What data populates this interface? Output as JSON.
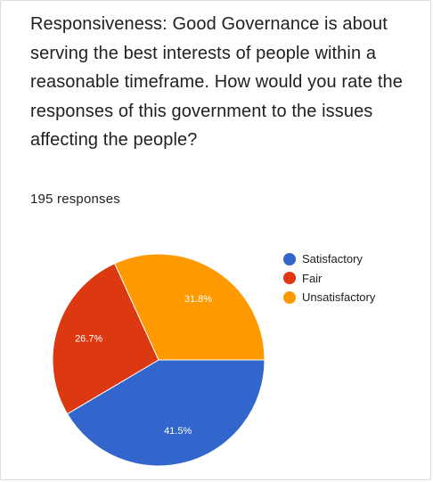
{
  "question": {
    "title": "Responsiveness: Good Governance is about serving the best interests of people within a reasonable timeframe. How would you rate the responses of this government to the issues affecting the people?",
    "response_count": "195 responses"
  },
  "chart_data": {
    "type": "pie",
    "categories": [
      "Satisfactory",
      "Fair",
      "Unsatisfactory"
    ],
    "values": [
      41.5,
      26.7,
      31.8
    ],
    "labels": [
      "41.5%",
      "26.7%",
      "31.8%"
    ],
    "colors": [
      "#3366cc",
      "#dc3912",
      "#ff9900"
    ],
    "legend_position": "right"
  }
}
